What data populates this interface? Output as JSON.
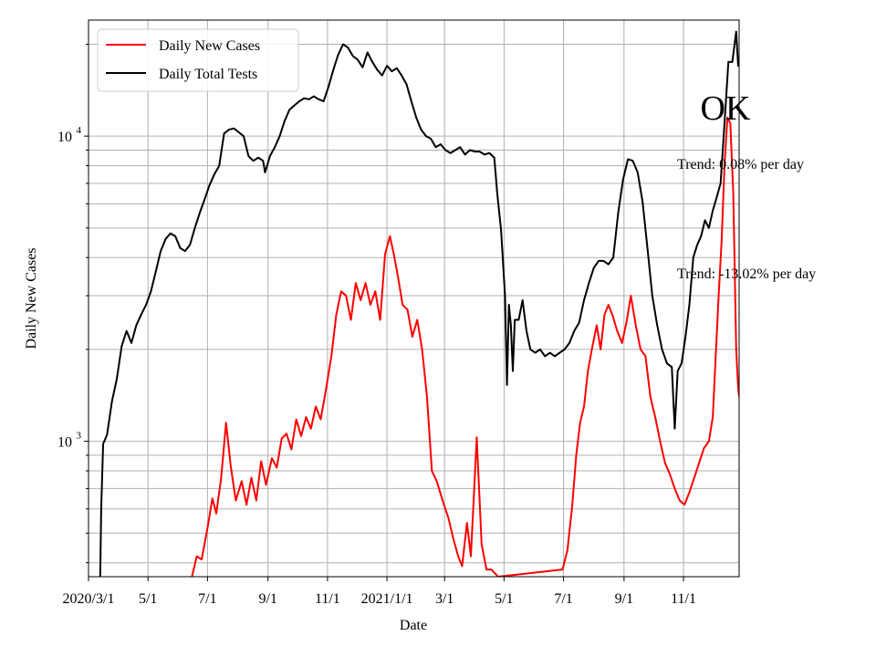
{
  "chart_data": {
    "type": "line",
    "title": "OK",
    "xlabel": "Date",
    "ylabel": "Daily New Cases",
    "y_scale": "log",
    "ylim": [
      360,
      24000
    ],
    "xlim": [
      "2020-03-01",
      "2021-12-28"
    ],
    "grid": true,
    "legend_position": "top-left",
    "x_ticks": [
      {
        "date": "2020-03-01",
        "label": "2020/3/1"
      },
      {
        "date": "2020-05-01",
        "label": "5/1"
      },
      {
        "date": "2020-07-01",
        "label": "7/1"
      },
      {
        "date": "2020-09-01",
        "label": "9/1"
      },
      {
        "date": "2020-11-01",
        "label": "11/1"
      },
      {
        "date": "2021-01-01",
        "label": "2021/1/1"
      },
      {
        "date": "2021-03-01",
        "label": "3/1"
      },
      {
        "date": "2021-05-01",
        "label": "5/1"
      },
      {
        "date": "2021-07-01",
        "label": "7/1"
      },
      {
        "date": "2021-09-01",
        "label": "9/1"
      },
      {
        "date": "2021-11-01",
        "label": "11/1"
      }
    ],
    "y_ticks": [
      {
        "value": 1000,
        "base": "10",
        "exp": "3"
      },
      {
        "value": 10000,
        "base": "10",
        "exp": "4"
      }
    ],
    "annotations": [
      {
        "text": "Trend: 0.08% per day"
      },
      {
        "text": "Trend: -13.02% per day"
      }
    ],
    "series": [
      {
        "name": "Daily New Cases",
        "color": "#ff0000",
        "points": [
          [
            "2020-06-15",
            360
          ],
          [
            "2020-06-20",
            420
          ],
          [
            "2020-06-25",
            410
          ],
          [
            "2020-07-01",
            520
          ],
          [
            "2020-07-06",
            650
          ],
          [
            "2020-07-10",
            580
          ],
          [
            "2020-07-15",
            760
          ],
          [
            "2020-07-20",
            1150
          ],
          [
            "2020-07-25",
            820
          ],
          [
            "2020-07-30",
            640
          ],
          [
            "2020-08-05",
            740
          ],
          [
            "2020-08-10",
            620
          ],
          [
            "2020-08-15",
            760
          ],
          [
            "2020-08-20",
            640
          ],
          [
            "2020-08-25",
            860
          ],
          [
            "2020-08-30",
            720
          ],
          [
            "2020-09-05",
            880
          ],
          [
            "2020-09-10",
            820
          ],
          [
            "2020-09-15",
            1020
          ],
          [
            "2020-09-20",
            1060
          ],
          [
            "2020-09-25",
            940
          ],
          [
            "2020-09-30",
            1180
          ],
          [
            "2020-10-05",
            1040
          ],
          [
            "2020-10-10",
            1200
          ],
          [
            "2020-10-15",
            1100
          ],
          [
            "2020-10-20",
            1300
          ],
          [
            "2020-10-25",
            1180
          ],
          [
            "2020-10-30",
            1450
          ],
          [
            "2020-11-05",
            1900
          ],
          [
            "2020-11-10",
            2600
          ],
          [
            "2020-11-15",
            3100
          ],
          [
            "2020-11-20",
            3000
          ],
          [
            "2020-11-25",
            2500
          ],
          [
            "2020-11-30",
            3300
          ],
          [
            "2020-12-05",
            2900
          ],
          [
            "2020-12-10",
            3300
          ],
          [
            "2020-12-15",
            2800
          ],
          [
            "2020-12-20",
            3100
          ],
          [
            "2020-12-25",
            2500
          ],
          [
            "2020-12-30",
            4100
          ],
          [
            "2021-01-04",
            4700
          ],
          [
            "2021-01-08",
            4100
          ],
          [
            "2021-01-12",
            3500
          ],
          [
            "2021-01-17",
            2800
          ],
          [
            "2021-01-22",
            2700
          ],
          [
            "2021-01-27",
            2200
          ],
          [
            "2021-02-01",
            2500
          ],
          [
            "2021-02-06",
            2000
          ],
          [
            "2021-02-11",
            1400
          ],
          [
            "2021-02-16",
            800
          ],
          [
            "2021-02-21",
            740
          ],
          [
            "2021-02-27",
            640
          ],
          [
            "2021-03-05",
            560
          ],
          [
            "2021-03-10",
            480
          ],
          [
            "2021-03-15",
            420
          ],
          [
            "2021-03-19",
            390
          ],
          [
            "2021-03-24",
            540
          ],
          [
            "2021-03-28",
            420
          ],
          [
            "2021-04-03",
            1030
          ],
          [
            "2021-04-08",
            460
          ],
          [
            "2021-04-13",
            380
          ],
          [
            "2021-04-18",
            380
          ],
          [
            "2021-04-25",
            360
          ],
          [
            "2021-06-30",
            380
          ],
          [
            "2021-07-05",
            440
          ],
          [
            "2021-07-10",
            620
          ],
          [
            "2021-07-14",
            900
          ],
          [
            "2021-07-18",
            1150
          ],
          [
            "2021-07-22",
            1300
          ],
          [
            "2021-07-26",
            1700
          ],
          [
            "2021-07-30",
            2000
          ],
          [
            "2021-08-04",
            2400
          ],
          [
            "2021-08-08",
            2000
          ],
          [
            "2021-08-12",
            2600
          ],
          [
            "2021-08-16",
            2800
          ],
          [
            "2021-08-20",
            2600
          ],
          [
            "2021-08-25",
            2300
          ],
          [
            "2021-08-30",
            2100
          ],
          [
            "2021-09-04",
            2500
          ],
          [
            "2021-09-08",
            3000
          ],
          [
            "2021-09-13",
            2400
          ],
          [
            "2021-09-18",
            2000
          ],
          [
            "2021-09-23",
            1900
          ],
          [
            "2021-09-28",
            1400
          ],
          [
            "2021-10-03",
            1200
          ],
          [
            "2021-10-08",
            1000
          ],
          [
            "2021-10-13",
            850
          ],
          [
            "2021-10-18",
            780
          ],
          [
            "2021-10-23",
            700
          ],
          [
            "2021-10-28",
            640
          ],
          [
            "2021-11-02",
            620
          ],
          [
            "2021-11-07",
            680
          ],
          [
            "2021-11-12",
            760
          ],
          [
            "2021-11-17",
            850
          ],
          [
            "2021-11-22",
            950
          ],
          [
            "2021-11-27",
            1000
          ],
          [
            "2021-12-01",
            1200
          ],
          [
            "2021-12-04",
            1900
          ],
          [
            "2021-12-07",
            3000
          ],
          [
            "2021-12-10",
            4500
          ],
          [
            "2021-12-13",
            8000
          ],
          [
            "2021-12-16",
            11500
          ],
          [
            "2021-12-19",
            11000
          ],
          [
            "2021-12-22",
            6500
          ],
          [
            "2021-12-25",
            2000
          ],
          [
            "2021-12-27",
            1500
          ],
          [
            "2021-12-28",
            1400
          ]
        ]
      },
      {
        "name": "Daily Total Tests",
        "color": "#000000",
        "points": [
          [
            "2020-03-13",
            360
          ],
          [
            "2020-03-14",
            600
          ],
          [
            "2020-03-16",
            980
          ],
          [
            "2020-03-20",
            1050
          ],
          [
            "2020-03-25",
            1350
          ],
          [
            "2020-03-30",
            1600
          ],
          [
            "2020-04-04",
            2050
          ],
          [
            "2020-04-09",
            2300
          ],
          [
            "2020-04-14",
            2100
          ],
          [
            "2020-04-19",
            2400
          ],
          [
            "2020-04-24",
            2600
          ],
          [
            "2020-04-29",
            2800
          ],
          [
            "2020-05-04",
            3100
          ],
          [
            "2020-05-09",
            3600
          ],
          [
            "2020-05-14",
            4200
          ],
          [
            "2020-05-19",
            4600
          ],
          [
            "2020-05-24",
            4800
          ],
          [
            "2020-05-29",
            4700
          ],
          [
            "2020-06-03",
            4300
          ],
          [
            "2020-06-08",
            4200
          ],
          [
            "2020-06-13",
            4400
          ],
          [
            "2020-06-18",
            5000
          ],
          [
            "2020-06-23",
            5600
          ],
          [
            "2020-06-28",
            6200
          ],
          [
            "2020-07-03",
            6900
          ],
          [
            "2020-07-08",
            7500
          ],
          [
            "2020-07-13",
            8000
          ],
          [
            "2020-07-18",
            10200
          ],
          [
            "2020-07-23",
            10500
          ],
          [
            "2020-07-28",
            10600
          ],
          [
            "2020-08-02",
            10300
          ],
          [
            "2020-08-07",
            10000
          ],
          [
            "2020-08-12",
            8600
          ],
          [
            "2020-08-17",
            8300
          ],
          [
            "2020-08-22",
            8500
          ],
          [
            "2020-08-27",
            8300
          ],
          [
            "2020-08-29",
            7600
          ],
          [
            "2020-09-03",
            8600
          ],
          [
            "2020-09-08",
            9200
          ],
          [
            "2020-09-13",
            10000
          ],
          [
            "2020-09-18",
            11200
          ],
          [
            "2020-09-23",
            12200
          ],
          [
            "2020-09-28",
            12600
          ],
          [
            "2020-10-03",
            13000
          ],
          [
            "2020-10-08",
            13300
          ],
          [
            "2020-10-13",
            13200
          ],
          [
            "2020-10-18",
            13500
          ],
          [
            "2020-10-23",
            13200
          ],
          [
            "2020-10-28",
            13000
          ],
          [
            "2020-11-02",
            14500
          ],
          [
            "2020-11-07",
            16500
          ],
          [
            "2020-11-12",
            18500
          ],
          [
            "2020-11-17",
            20000
          ],
          [
            "2020-11-22",
            19500
          ],
          [
            "2020-11-27",
            18300
          ],
          [
            "2020-12-02",
            17800
          ],
          [
            "2020-12-07",
            16800
          ],
          [
            "2020-12-12",
            18800
          ],
          [
            "2020-12-17",
            17500
          ],
          [
            "2020-12-22",
            16500
          ],
          [
            "2020-12-27",
            15800
          ],
          [
            "2021-01-01",
            17000
          ],
          [
            "2021-01-06",
            16300
          ],
          [
            "2021-01-11",
            16700
          ],
          [
            "2021-01-16",
            15800
          ],
          [
            "2021-01-21",
            14800
          ],
          [
            "2021-01-26",
            13000
          ],
          [
            "2021-01-31",
            11500
          ],
          [
            "2021-02-05",
            10500
          ],
          [
            "2021-02-10",
            10000
          ],
          [
            "2021-02-15",
            9800
          ],
          [
            "2021-02-20",
            9200
          ],
          [
            "2021-02-25",
            9400
          ],
          [
            "2021-03-02",
            9000
          ],
          [
            "2021-03-07",
            8800
          ],
          [
            "2021-03-12",
            9000
          ],
          [
            "2021-03-17",
            9200
          ],
          [
            "2021-03-22",
            8700
          ],
          [
            "2021-03-27",
            9000
          ],
          [
            "2021-04-01",
            8900
          ],
          [
            "2021-04-06",
            8900
          ],
          [
            "2021-04-11",
            8700
          ],
          [
            "2021-04-16",
            8800
          ],
          [
            "2021-04-21",
            8500
          ],
          [
            "2021-04-24",
            6500
          ],
          [
            "2021-04-28",
            4900
          ],
          [
            "2021-05-02",
            3000
          ],
          [
            "2021-05-04",
            1530
          ],
          [
            "2021-05-06",
            2800
          ],
          [
            "2021-05-08",
            2400
          ],
          [
            "2021-05-10",
            1700
          ],
          [
            "2021-05-12",
            2500
          ],
          [
            "2021-05-16",
            2500
          ],
          [
            "2021-05-20",
            2900
          ],
          [
            "2021-05-24",
            2300
          ],
          [
            "2021-05-28",
            2000
          ],
          [
            "2021-06-02",
            1950
          ],
          [
            "2021-06-07",
            2000
          ],
          [
            "2021-06-12",
            1900
          ],
          [
            "2021-06-17",
            1950
          ],
          [
            "2021-06-22",
            1900
          ],
          [
            "2021-06-27",
            1950
          ],
          [
            "2021-07-02",
            2000
          ],
          [
            "2021-07-07",
            2100
          ],
          [
            "2021-07-12",
            2300
          ],
          [
            "2021-07-17",
            2450
          ],
          [
            "2021-07-22",
            2900
          ],
          [
            "2021-07-27",
            3300
          ],
          [
            "2021-08-01",
            3700
          ],
          [
            "2021-08-06",
            3900
          ],
          [
            "2021-08-11",
            3900
          ],
          [
            "2021-08-16",
            3800
          ],
          [
            "2021-08-21",
            4000
          ],
          [
            "2021-08-26",
            5600
          ],
          [
            "2021-08-31",
            7200
          ],
          [
            "2021-09-05",
            8400
          ],
          [
            "2021-09-10",
            8300
          ],
          [
            "2021-09-15",
            7600
          ],
          [
            "2021-09-20",
            6100
          ],
          [
            "2021-09-25",
            4300
          ],
          [
            "2021-09-30",
            3000
          ],
          [
            "2021-10-05",
            2400
          ],
          [
            "2021-10-10",
            2000
          ],
          [
            "2021-10-15",
            1800
          ],
          [
            "2021-10-20",
            1750
          ],
          [
            "2021-10-23",
            1100
          ],
          [
            "2021-10-26",
            1700
          ],
          [
            "2021-10-30",
            1800
          ],
          [
            "2021-11-03",
            2200
          ],
          [
            "2021-11-07",
            2800
          ],
          [
            "2021-11-11",
            4000
          ],
          [
            "2021-11-15",
            4400
          ],
          [
            "2021-11-19",
            4700
          ],
          [
            "2021-11-23",
            5300
          ],
          [
            "2021-11-27",
            5000
          ],
          [
            "2021-12-01",
            5700
          ],
          [
            "2021-12-05",
            6300
          ],
          [
            "2021-12-09",
            7000
          ],
          [
            "2021-12-13",
            11000
          ],
          [
            "2021-12-17",
            17500
          ],
          [
            "2021-12-21",
            17500
          ],
          [
            "2021-12-25",
            22000
          ],
          [
            "2021-12-27",
            17000
          ],
          [
            "2021-12-28",
            18000
          ]
        ]
      }
    ]
  }
}
